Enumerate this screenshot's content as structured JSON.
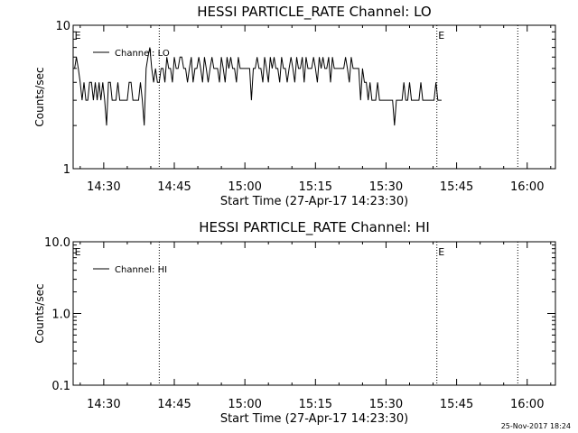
{
  "chart_data": [
    {
      "type": "line",
      "title": "HESSI PARTICLE_RATE Channel: LO",
      "xlabel": "Start Time (27-Apr-17 14:23:30)",
      "ylabel": "Counts/sec",
      "yscale": "log",
      "ylim": [
        1,
        10
      ],
      "yticks": [
        1,
        10
      ],
      "ytick_labels": [
        "1",
        "10"
      ],
      "xlim_minutes": [
        "14:23:30",
        "16:06:00"
      ],
      "xtick_labels": [
        "14:30",
        "14:45",
        "15:00",
        "15:15",
        "15:30",
        "15:45",
        "16:00"
      ],
      "xtick_minutes": [
        6.5,
        21.5,
        36.5,
        51.5,
        66.5,
        81.5,
        96.5
      ],
      "vlines_minutes": [
        18.3,
        77.3,
        94.5
      ],
      "vline_marks": [
        {
          "label": "E",
          "at_minutes": 0.3
        },
        {
          "label": "E",
          "at_minutes": 77.6
        }
      ],
      "series": [
        {
          "name": "Channel: LO",
          "x_start_minutes": 0.3,
          "x_step_minutes": 0.4,
          "values": [
            5,
            6,
            5,
            4,
            3,
            4,
            3,
            3,
            4,
            4,
            3,
            4,
            3,
            4,
            3,
            4,
            3,
            2,
            4,
            4,
            3,
            3,
            3,
            4,
            3,
            3,
            3,
            3,
            3,
            4,
            4,
            3,
            3,
            3,
            3,
            4,
            3,
            2,
            5,
            6,
            7,
            5,
            4,
            5,
            4,
            4,
            5,
            5,
            4,
            6,
            5,
            5,
            4,
            6,
            5,
            5,
            6,
            6,
            5,
            5,
            4,
            5,
            6,
            4,
            5,
            5,
            6,
            5,
            4,
            6,
            5,
            4,
            5,
            6,
            5,
            5,
            5,
            4,
            6,
            5,
            4,
            6,
            5,
            6,
            5,
            5,
            4,
            6,
            5,
            5,
            5,
            5,
            5,
            5,
            3,
            5,
            5,
            6,
            5,
            5,
            4,
            6,
            5,
            4,
            6,
            5,
            6,
            5,
            5,
            4,
            6,
            5,
            5,
            4,
            5,
            6,
            5,
            4,
            6,
            5,
            5,
            6,
            4,
            6,
            5,
            5,
            5,
            6,
            5,
            4,
            6,
            5,
            6,
            5,
            5,
            6,
            4,
            6,
            5,
            5,
            5,
            5,
            5,
            5,
            6,
            5,
            4,
            6,
            5,
            5,
            5,
            5,
            3,
            5,
            4,
            4,
            3,
            4,
            3,
            3,
            3,
            4,
            3,
            3,
            3,
            3,
            3,
            3,
            3,
            3,
            2,
            3,
            3,
            3,
            3,
            4,
            3,
            3,
            4,
            3,
            3,
            3,
            3,
            3,
            4,
            3,
            3,
            3,
            3,
            3,
            3,
            3,
            4,
            3,
            3,
            3
          ]
        }
      ]
    },
    {
      "type": "line",
      "title": "HESSI PARTICLE_RATE Channel: HI",
      "xlabel": "Start Time (27-Apr-17 14:23:30)",
      "ylabel": "Counts/sec",
      "yscale": "log",
      "ylim": [
        0.1,
        10
      ],
      "yticks": [
        0.1,
        1,
        10
      ],
      "ytick_labels": [
        "0.1",
        "1.0",
        "10.0"
      ],
      "xlim_minutes": [
        "14:23:30",
        "16:06:00"
      ],
      "xtick_labels": [
        "14:30",
        "14:45",
        "15:00",
        "15:15",
        "15:30",
        "15:45",
        "16:00"
      ],
      "xtick_minutes": [
        6.5,
        21.5,
        36.5,
        51.5,
        66.5,
        81.5,
        96.5
      ],
      "vlines_minutes": [
        18.3,
        77.3,
        94.5
      ],
      "vline_marks": [
        {
          "label": "E",
          "at_minutes": 0.3
        },
        {
          "label": "E",
          "at_minutes": 77.6
        }
      ],
      "series": [
        {
          "name": "Channel: HI",
          "values": []
        }
      ]
    }
  ],
  "footer": "25-Nov-2017 18:24"
}
